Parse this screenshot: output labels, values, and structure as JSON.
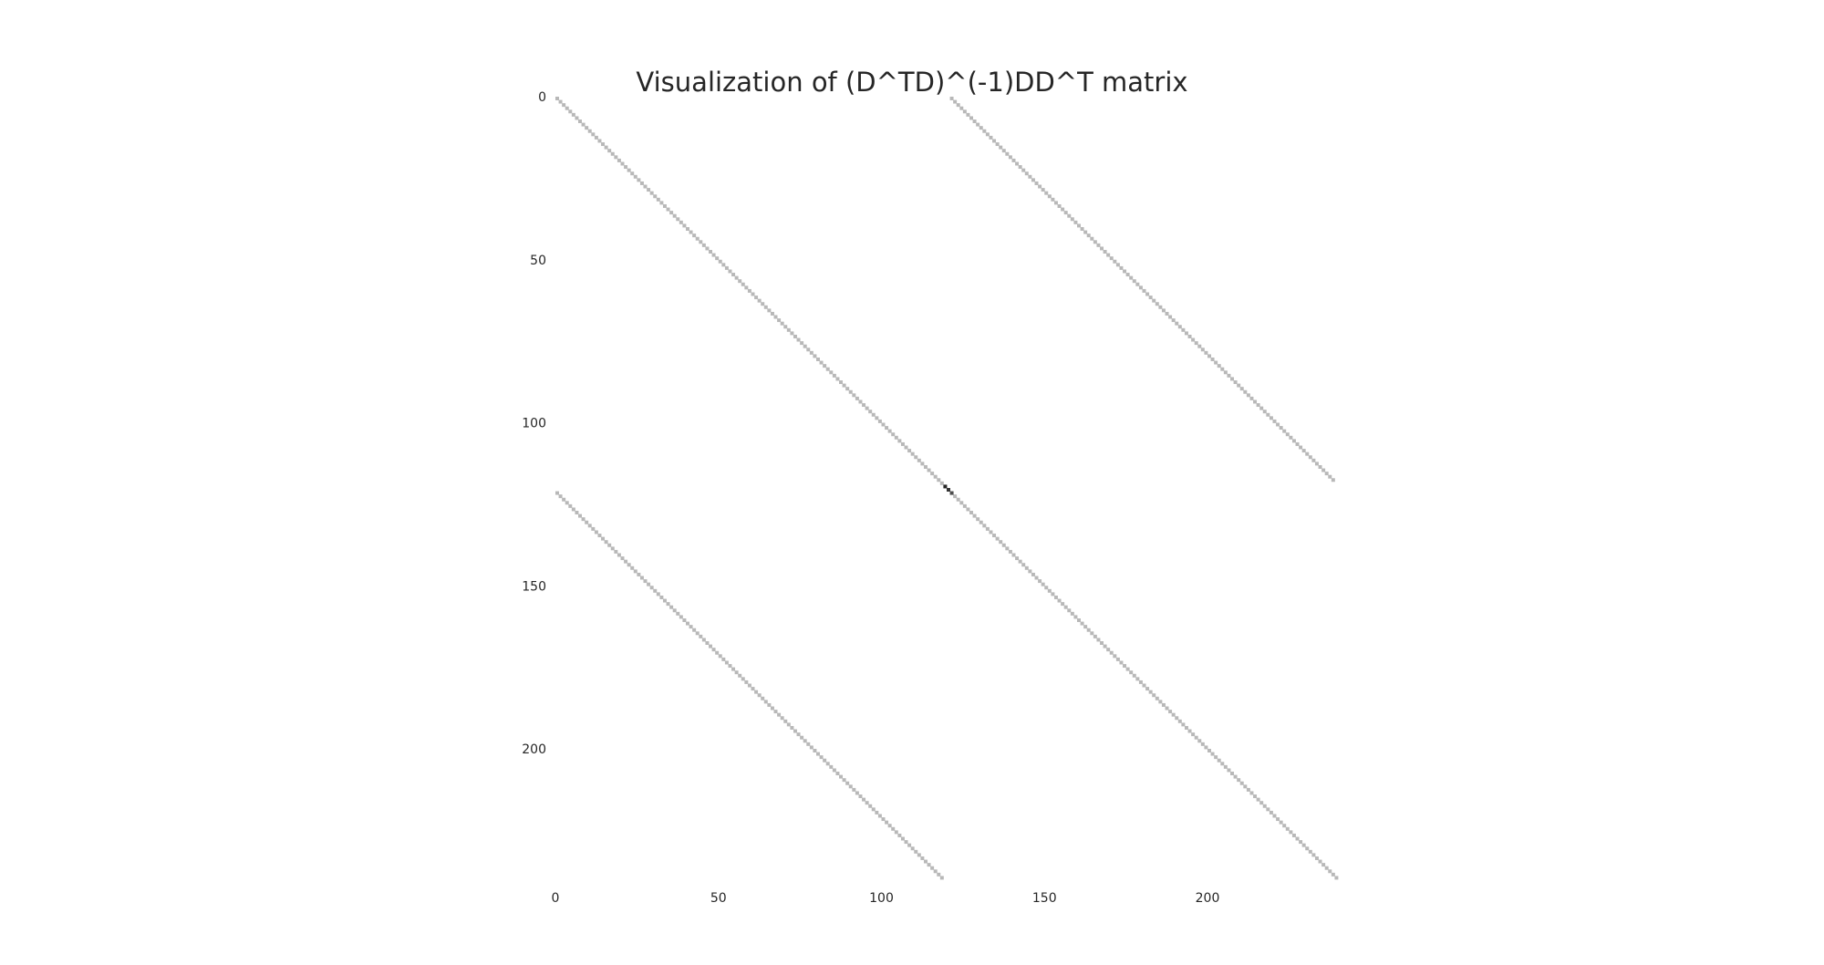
{
  "chart_data": {
    "type": "heatmap",
    "title": "Visualization of (D^TD)^(-1)DD^T  matrix",
    "xlabel": "",
    "ylabel": "",
    "matrix_size": 240,
    "xlim": [
      0,
      240
    ],
    "ylim": [
      240,
      0
    ],
    "x_ticks": [
      0,
      50,
      100,
      150,
      200
    ],
    "y_ticks": [
      0,
      50,
      100,
      150,
      200
    ],
    "x_tick_labels": [
      "0",
      "50",
      "100",
      "150",
      "200"
    ],
    "y_tick_labels": [
      "0",
      "50",
      "100",
      "150",
      "200"
    ],
    "grid": false,
    "colormap": "gray_r",
    "nonzero_bands": [
      {
        "name": "main diagonal",
        "col_offset": 0,
        "row_start": 0,
        "row_end": 240,
        "value": 0.28
      },
      {
        "name": "upper off-diagonal",
        "col_offset": 121,
        "row_start": 0,
        "row_end": 118,
        "value": 0.28
      },
      {
        "name": "lower off-diagonal",
        "col_offset": -121,
        "row_start": 121,
        "row_end": 240,
        "value": 0.28
      }
    ],
    "highlight_cells": [
      {
        "row": 119,
        "col": 119,
        "value": 0.85
      },
      {
        "row": 120,
        "col": 120,
        "value": 0.8
      },
      {
        "row": 121,
        "col": 121,
        "value": 0.7
      }
    ],
    "colors": {
      "background": "#ffffff",
      "band": "#b8b8b8",
      "highlight": "#1a1a1a",
      "text": "#262626"
    }
  }
}
